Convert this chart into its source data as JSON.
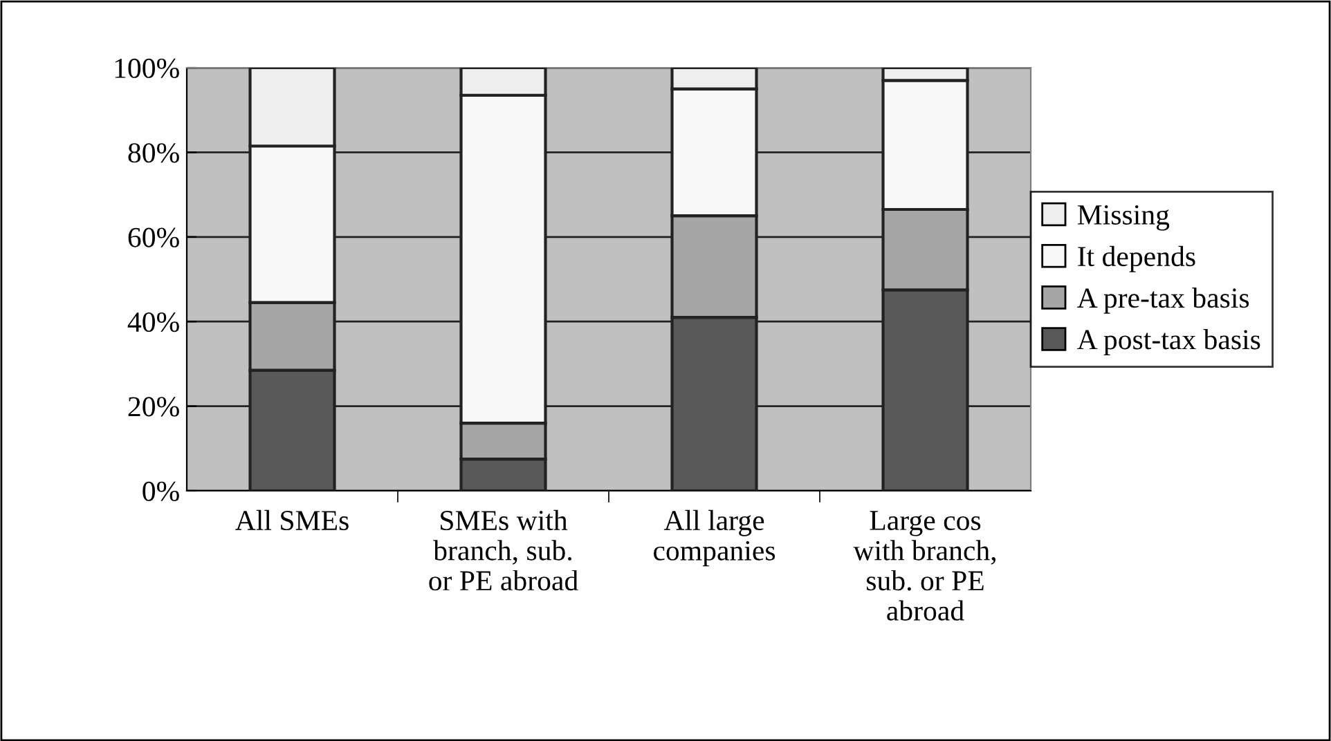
{
  "chart_data": {
    "type": "bar",
    "stacked": true,
    "categories": [
      "All SMEs",
      "SMEs with\nbranch, sub.\nor PE abroad",
      "All large\ncompanies",
      "Large cos\nwith branch,\nsub. or PE\nabroad"
    ],
    "series": [
      {
        "name": "A post-tax basis",
        "color": "#595959",
        "values": [
          28.5,
          7.5,
          41,
          47.5
        ]
      },
      {
        "name": "A pre-tax basis",
        "color": "#a6a6a6",
        "values": [
          16,
          8.5,
          24,
          19
        ]
      },
      {
        "name": "It depends",
        "color": "#f8f8f8",
        "values": [
          37,
          77.5,
          30,
          30.5
        ]
      },
      {
        "name": "Missing",
        "color": "#eeeeee",
        "values": [
          18.5,
          6.5,
          5,
          3
        ]
      }
    ],
    "ylim": [
      0,
      100
    ],
    "yticks": [
      {
        "value": 0,
        "label": "0%"
      },
      {
        "value": 20,
        "label": "20%"
      },
      {
        "value": 40,
        "label": "40%"
      },
      {
        "value": 60,
        "label": "60%"
      },
      {
        "value": 80,
        "label": "80%"
      },
      {
        "value": 100,
        "label": "100%"
      }
    ],
    "grid": "y",
    "legend": "right"
  }
}
